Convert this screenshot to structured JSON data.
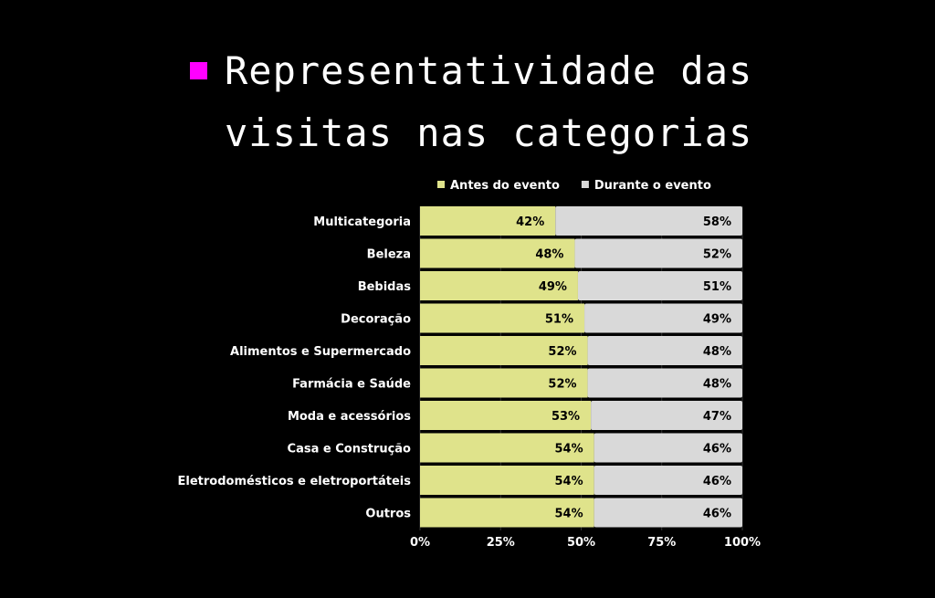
{
  "title": {
    "line1": "Representatividade das",
    "line2": "visitas nas categorias",
    "marker_color": "#ff00ff"
  },
  "chart_data": {
    "type": "bar",
    "orientation": "horizontal",
    "stacked": "percent",
    "title": "Representatividade das visitas nas categorias",
    "legend_position": "top",
    "grid": true,
    "xlim": [
      0,
      100
    ],
    "x_ticks": [
      "0%",
      "25%",
      "50%",
      "75%",
      "100%"
    ],
    "categories": [
      "Multicategoria",
      "Beleza",
      "Bebidas",
      "Decoração",
      "Alimentos e Supermercado",
      "Farmácia e Saúde",
      "Moda e acessórios",
      "Casa e Construção",
      "Eletrodomésticos e eletroportáteis",
      "Outros"
    ],
    "series": [
      {
        "name": "Antes do evento",
        "color": "#dfe38b",
        "values": [
          42,
          48,
          49,
          51,
          52,
          52,
          53,
          54,
          54,
          54
        ]
      },
      {
        "name": "Durante o evento",
        "color": "#d9d9d9",
        "values": [
          58,
          52,
          51,
          49,
          48,
          48,
          47,
          46,
          46,
          46
        ]
      }
    ]
  }
}
